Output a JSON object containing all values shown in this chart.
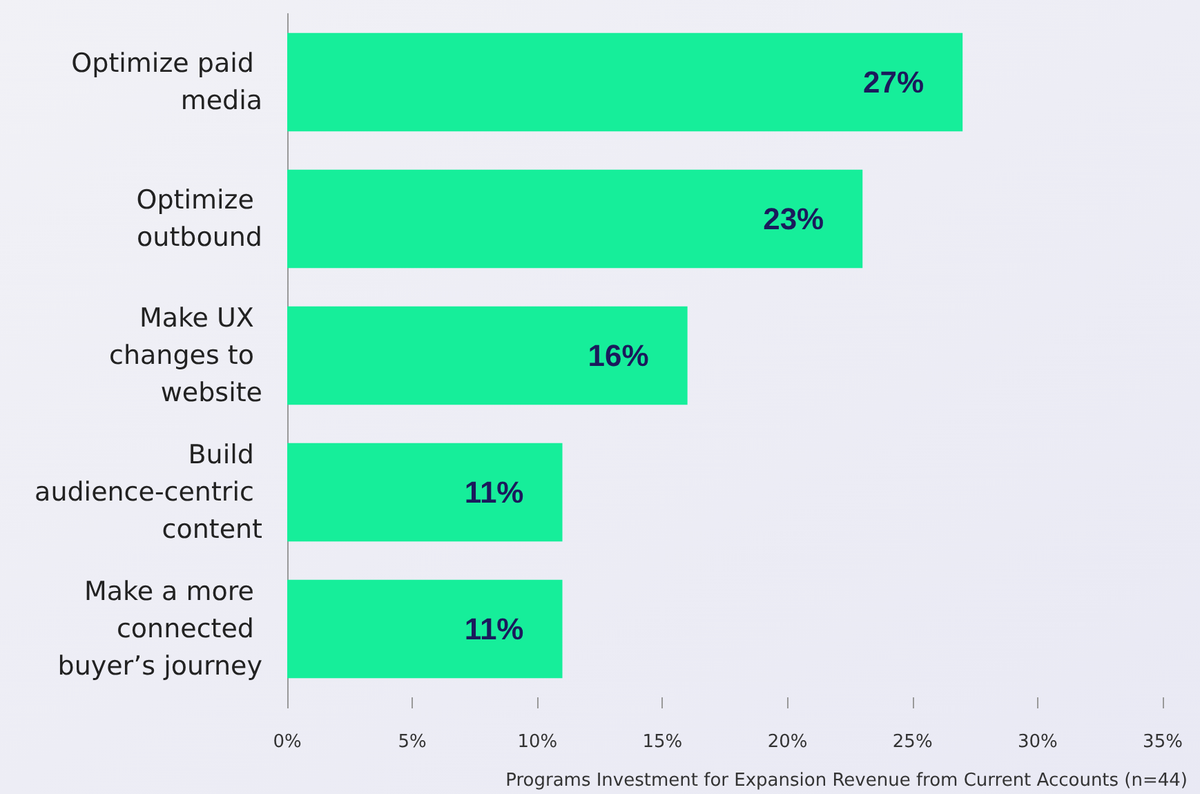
{
  "chart_data": {
    "type": "bar",
    "orientation": "horizontal",
    "xlabel": "Programs Investment for Expansion Revenue from Current Accounts (n=44)",
    "categories": [
      "Optimize paid media",
      "Optimize outbound",
      "Make UX changes to website",
      "Build audience-centric content",
      "Make a more connected buyer’s journey"
    ],
    "values": [
      27,
      23,
      16,
      11,
      11
    ],
    "value_labels": [
      "27%",
      "23%",
      "16%",
      "11%",
      "11%"
    ],
    "color": "#16ee9a",
    "xlim": [
      0,
      35
    ],
    "xticks": [
      {
        "value": 0,
        "label": "0%"
      },
      {
        "value": 5,
        "label": "5%"
      },
      {
        "value": 10,
        "label": "10%"
      },
      {
        "value": 15,
        "label": "15%"
      },
      {
        "value": 20,
        "label": "20%"
      },
      {
        "value": 25,
        "label": "25%"
      },
      {
        "value": 30,
        "label": "30%"
      },
      {
        "value": 35,
        "label": "35%"
      }
    ],
    "grid": false
  }
}
